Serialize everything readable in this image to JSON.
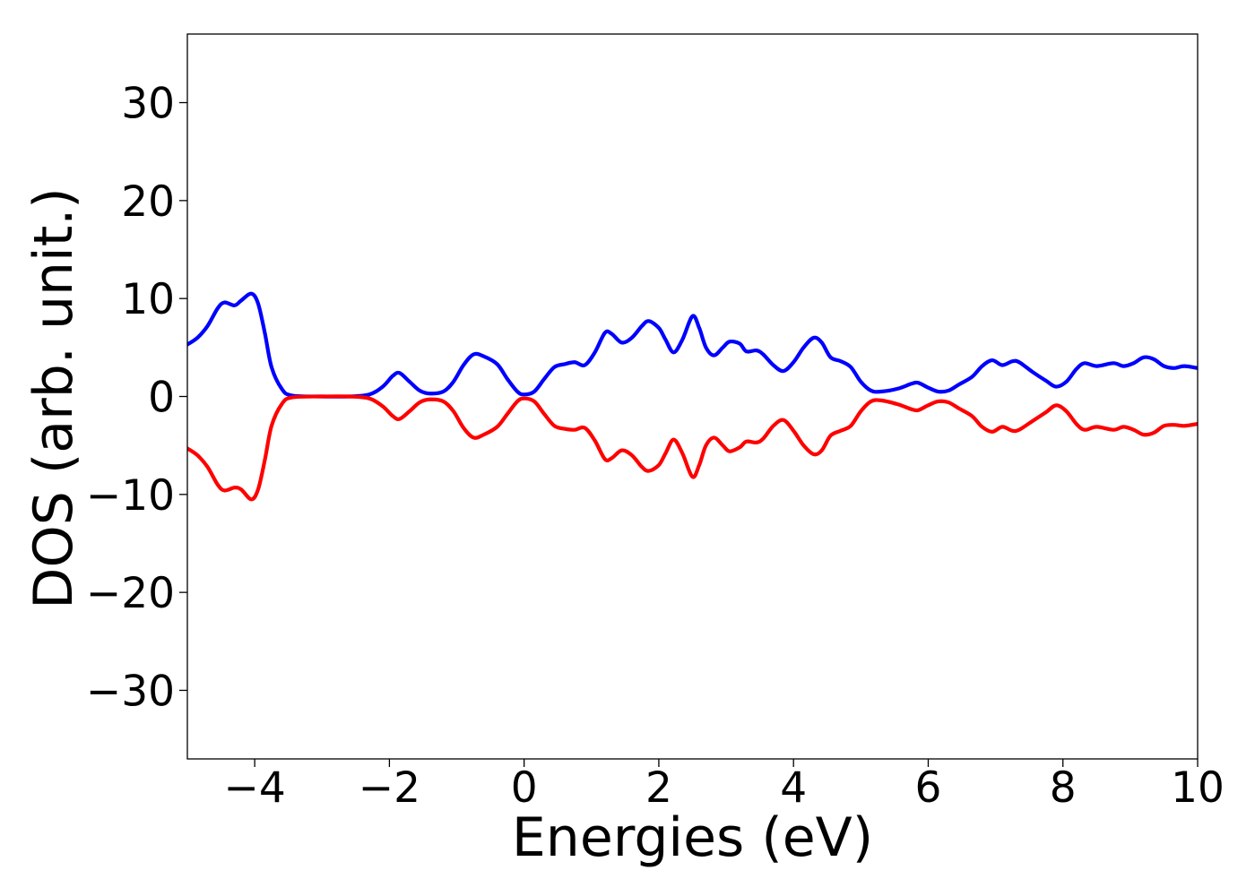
{
  "chart_data": {
    "type": "line",
    "title": "",
    "xlabel": "Energies (eV)",
    "ylabel": "DOS (arb. unit.)",
    "xlim": [
      -5,
      10
    ],
    "ylim": [
      -37,
      37
    ],
    "x_ticks": [
      -4,
      -2,
      0,
      2,
      4,
      6,
      8,
      10
    ],
    "y_ticks": [
      -30,
      -20,
      -10,
      0,
      10,
      20,
      30
    ],
    "x_tick_labels": [
      "−4",
      "−2",
      "0",
      "2",
      "4",
      "6",
      "8",
      "10"
    ],
    "y_tick_labels": [
      "−30",
      "−20",
      "−10",
      "0",
      "10",
      "20",
      "30"
    ],
    "grid": false,
    "legend": "none",
    "series": [
      {
        "color": "#0000ff",
        "points": [
          [
            -5.0,
            5.3
          ],
          [
            -4.85,
            6.0
          ],
          [
            -4.7,
            7.2
          ],
          [
            -4.55,
            9.0
          ],
          [
            -4.45,
            9.6
          ],
          [
            -4.3,
            9.3
          ],
          [
            -4.2,
            9.8
          ],
          [
            -4.05,
            10.5
          ],
          [
            -3.95,
            9.5
          ],
          [
            -3.85,
            6.5
          ],
          [
            -3.75,
            3.0
          ],
          [
            -3.6,
            0.8
          ],
          [
            -3.45,
            0.1
          ],
          [
            -3.0,
            0.0
          ],
          [
            -2.6,
            0.0
          ],
          [
            -2.3,
            0.2
          ],
          [
            -2.1,
            1.0
          ],
          [
            -1.95,
            2.1
          ],
          [
            -1.85,
            2.4
          ],
          [
            -1.7,
            1.5
          ],
          [
            -1.55,
            0.6
          ],
          [
            -1.4,
            0.3
          ],
          [
            -1.2,
            0.5
          ],
          [
            -1.05,
            1.5
          ],
          [
            -0.9,
            3.2
          ],
          [
            -0.75,
            4.3
          ],
          [
            -0.6,
            4.1
          ],
          [
            -0.4,
            3.3
          ],
          [
            -0.25,
            1.8
          ],
          [
            -0.1,
            0.5
          ],
          [
            0.0,
            0.2
          ],
          [
            0.15,
            0.5
          ],
          [
            0.3,
            1.8
          ],
          [
            0.45,
            3.0
          ],
          [
            0.6,
            3.3
          ],
          [
            0.75,
            3.5
          ],
          [
            0.9,
            3.2
          ],
          [
            1.05,
            4.5
          ],
          [
            1.2,
            6.5
          ],
          [
            1.3,
            6.4
          ],
          [
            1.45,
            5.5
          ],
          [
            1.6,
            6.0
          ],
          [
            1.75,
            7.2
          ],
          [
            1.85,
            7.7
          ],
          [
            2.0,
            7.0
          ],
          [
            2.1,
            5.8
          ],
          [
            2.22,
            4.5
          ],
          [
            2.35,
            5.8
          ],
          [
            2.5,
            8.2
          ],
          [
            2.6,
            7.0
          ],
          [
            2.7,
            5.0
          ],
          [
            2.82,
            4.2
          ],
          [
            2.95,
            5.0
          ],
          [
            3.05,
            5.6
          ],
          [
            3.2,
            5.4
          ],
          [
            3.3,
            4.6
          ],
          [
            3.45,
            4.7
          ],
          [
            3.55,
            4.3
          ],
          [
            3.7,
            3.2
          ],
          [
            3.85,
            2.6
          ],
          [
            4.0,
            3.5
          ],
          [
            4.15,
            5.0
          ],
          [
            4.3,
            6.0
          ],
          [
            4.42,
            5.5
          ],
          [
            4.55,
            4.0
          ],
          [
            4.7,
            3.6
          ],
          [
            4.85,
            3.0
          ],
          [
            5.0,
            1.5
          ],
          [
            5.15,
            0.6
          ],
          [
            5.3,
            0.5
          ],
          [
            5.55,
            0.8
          ],
          [
            5.75,
            1.3
          ],
          [
            5.85,
            1.4
          ],
          [
            6.0,
            0.9
          ],
          [
            6.15,
            0.5
          ],
          [
            6.3,
            0.6
          ],
          [
            6.45,
            1.2
          ],
          [
            6.65,
            2.0
          ],
          [
            6.8,
            3.1
          ],
          [
            6.95,
            3.7
          ],
          [
            7.1,
            3.2
          ],
          [
            7.25,
            3.6
          ],
          [
            7.35,
            3.5
          ],
          [
            7.55,
            2.5
          ],
          [
            7.75,
            1.6
          ],
          [
            7.9,
            1.0
          ],
          [
            8.05,
            1.5
          ],
          [
            8.2,
            2.8
          ],
          [
            8.32,
            3.4
          ],
          [
            8.5,
            3.1
          ],
          [
            8.75,
            3.4
          ],
          [
            8.9,
            3.1
          ],
          [
            9.05,
            3.4
          ],
          [
            9.2,
            4.0
          ],
          [
            9.35,
            3.8
          ],
          [
            9.5,
            3.1
          ],
          [
            9.65,
            2.9
          ],
          [
            9.8,
            3.1
          ],
          [
            10.0,
            2.9
          ]
        ]
      },
      {
        "color": "#ff0000",
        "points": [
          [
            -5.0,
            -5.3
          ],
          [
            -4.85,
            -6.0
          ],
          [
            -4.7,
            -7.2
          ],
          [
            -4.55,
            -9.0
          ],
          [
            -4.45,
            -9.6
          ],
          [
            -4.3,
            -9.3
          ],
          [
            -4.2,
            -9.5
          ],
          [
            -4.05,
            -10.5
          ],
          [
            -3.95,
            -9.5
          ],
          [
            -3.85,
            -6.5
          ],
          [
            -3.75,
            -3.0
          ],
          [
            -3.6,
            -0.8
          ],
          [
            -3.45,
            -0.1
          ],
          [
            -3.0,
            0.0
          ],
          [
            -2.6,
            0.0
          ],
          [
            -2.3,
            -0.2
          ],
          [
            -2.1,
            -1.0
          ],
          [
            -1.95,
            -2.0
          ],
          [
            -1.85,
            -2.3
          ],
          [
            -1.7,
            -1.5
          ],
          [
            -1.55,
            -0.6
          ],
          [
            -1.4,
            -0.3
          ],
          [
            -1.2,
            -0.5
          ],
          [
            -1.05,
            -1.5
          ],
          [
            -0.9,
            -3.2
          ],
          [
            -0.75,
            -4.2
          ],
          [
            -0.6,
            -3.9
          ],
          [
            -0.4,
            -3.1
          ],
          [
            -0.25,
            -1.8
          ],
          [
            -0.1,
            -0.5
          ],
          [
            0.0,
            -0.2
          ],
          [
            0.15,
            -0.5
          ],
          [
            0.3,
            -1.8
          ],
          [
            0.45,
            -3.0
          ],
          [
            0.6,
            -3.3
          ],
          [
            0.75,
            -3.4
          ],
          [
            0.9,
            -3.2
          ],
          [
            1.05,
            -4.5
          ],
          [
            1.2,
            -6.4
          ],
          [
            1.3,
            -6.3
          ],
          [
            1.45,
            -5.5
          ],
          [
            1.6,
            -6.0
          ],
          [
            1.75,
            -7.2
          ],
          [
            1.85,
            -7.6
          ],
          [
            2.0,
            -7.0
          ],
          [
            2.1,
            -5.8
          ],
          [
            2.22,
            -4.4
          ],
          [
            2.35,
            -5.8
          ],
          [
            2.5,
            -8.2
          ],
          [
            2.6,
            -7.0
          ],
          [
            2.7,
            -5.0
          ],
          [
            2.82,
            -4.2
          ],
          [
            2.95,
            -5.0
          ],
          [
            3.05,
            -5.6
          ],
          [
            3.2,
            -5.2
          ],
          [
            3.3,
            -4.6
          ],
          [
            3.45,
            -4.7
          ],
          [
            3.55,
            -4.3
          ],
          [
            3.7,
            -3.0
          ],
          [
            3.85,
            -2.4
          ],
          [
            4.0,
            -3.5
          ],
          [
            4.15,
            -5.0
          ],
          [
            4.3,
            -5.9
          ],
          [
            4.42,
            -5.5
          ],
          [
            4.55,
            -4.0
          ],
          [
            4.7,
            -3.5
          ],
          [
            4.85,
            -3.0
          ],
          [
            5.0,
            -1.5
          ],
          [
            5.15,
            -0.5
          ],
          [
            5.3,
            -0.4
          ],
          [
            5.55,
            -0.8
          ],
          [
            5.75,
            -1.3
          ],
          [
            5.85,
            -1.4
          ],
          [
            6.0,
            -0.9
          ],
          [
            6.15,
            -0.5
          ],
          [
            6.3,
            -0.6
          ],
          [
            6.45,
            -1.2
          ],
          [
            6.65,
            -2.0
          ],
          [
            6.8,
            -3.1
          ],
          [
            6.95,
            -3.6
          ],
          [
            7.1,
            -3.1
          ],
          [
            7.25,
            -3.5
          ],
          [
            7.35,
            -3.4
          ],
          [
            7.55,
            -2.5
          ],
          [
            7.75,
            -1.6
          ],
          [
            7.9,
            -0.9
          ],
          [
            8.05,
            -1.5
          ],
          [
            8.2,
            -2.8
          ],
          [
            8.32,
            -3.4
          ],
          [
            8.5,
            -3.1
          ],
          [
            8.75,
            -3.4
          ],
          [
            8.9,
            -3.1
          ],
          [
            9.05,
            -3.4
          ],
          [
            9.2,
            -3.9
          ],
          [
            9.35,
            -3.7
          ],
          [
            9.5,
            -3.0
          ],
          [
            9.65,
            -2.9
          ],
          [
            9.8,
            -3.0
          ],
          [
            10.0,
            -2.8
          ]
        ]
      }
    ]
  }
}
